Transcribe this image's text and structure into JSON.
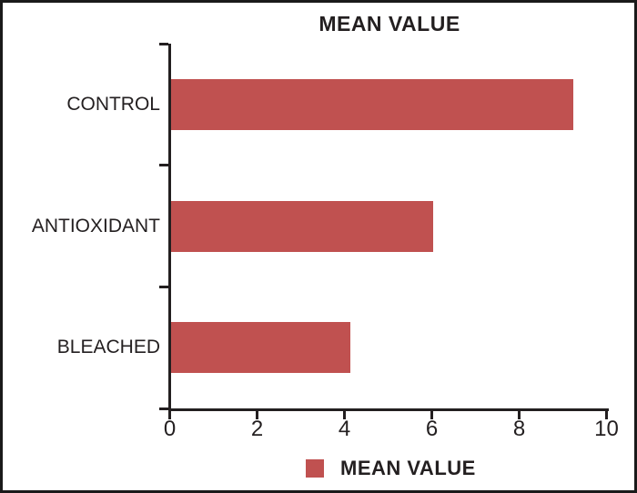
{
  "title": "MEAN VALUE",
  "legend": {
    "label": "MEAN VALUE",
    "swatch_color": "#c05150"
  },
  "chart_data": {
    "type": "bar",
    "orientation": "horizontal",
    "title": "MEAN VALUE",
    "categories": [
      "CONTROL",
      "ANTIOXIDANT",
      "BLEACHED"
    ],
    "series": [
      {
        "name": "MEAN VALUE",
        "values": [
          9.2,
          6.0,
          4.1
        ]
      }
    ],
    "xlabel": "",
    "ylabel": "",
    "xlim": [
      0,
      10
    ],
    "xticks": [
      0,
      2,
      4,
      6,
      8,
      10
    ],
    "bar_color": "#c05150",
    "axis_color": "#231f20",
    "grid": false,
    "legend_position": "bottom"
  }
}
